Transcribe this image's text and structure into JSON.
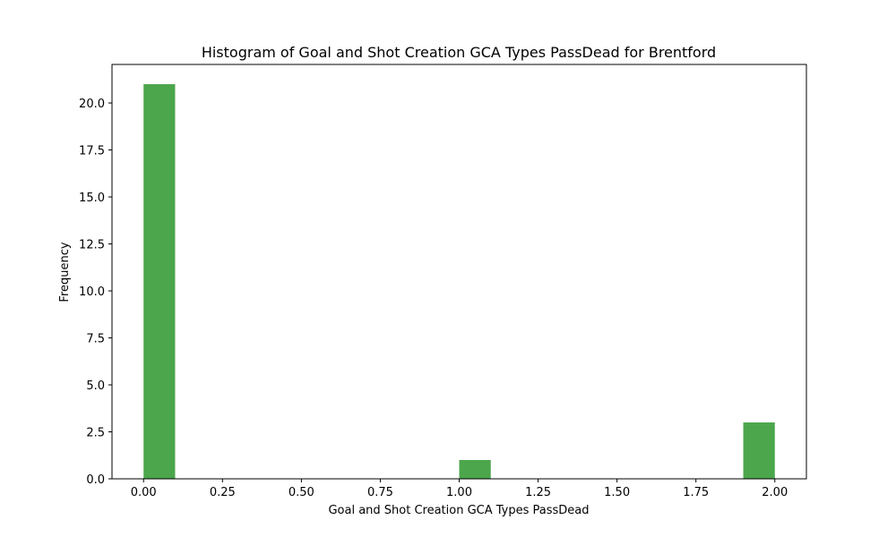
{
  "chart_data": {
    "type": "bar",
    "title": "Histogram of Goal and Shot Creation GCA Types PassDead for Brentford",
    "xlabel": "Goal and Shot Creation GCA Types PassDead",
    "ylabel": "Frequency",
    "bar_color": "#4ca64c",
    "xlim": [
      -0.1,
      2.1
    ],
    "ylim": [
      0,
      22.05
    ],
    "x_ticks": [
      0.0,
      0.25,
      0.5,
      0.75,
      1.0,
      1.25,
      1.5,
      1.75,
      2.0
    ],
    "x_tick_labels": [
      "0.00",
      "0.25",
      "0.50",
      "0.75",
      "1.00",
      "1.25",
      "1.50",
      "1.75",
      "2.00"
    ],
    "y_ticks": [
      0.0,
      2.5,
      5.0,
      7.5,
      10.0,
      12.5,
      15.0,
      17.5,
      20.0
    ],
    "y_tick_labels": [
      "0.0",
      "2.5",
      "5.0",
      "7.5",
      "10.0",
      "12.5",
      "15.0",
      "17.5",
      "20.0"
    ],
    "bins": [
      {
        "x0": 0.0,
        "x1": 0.1,
        "count": 21
      },
      {
        "x0": 1.0,
        "x1": 1.1,
        "count": 1
      },
      {
        "x0": 1.9,
        "x1": 2.0,
        "count": 3
      }
    ],
    "grid": false,
    "legend": "none"
  }
}
